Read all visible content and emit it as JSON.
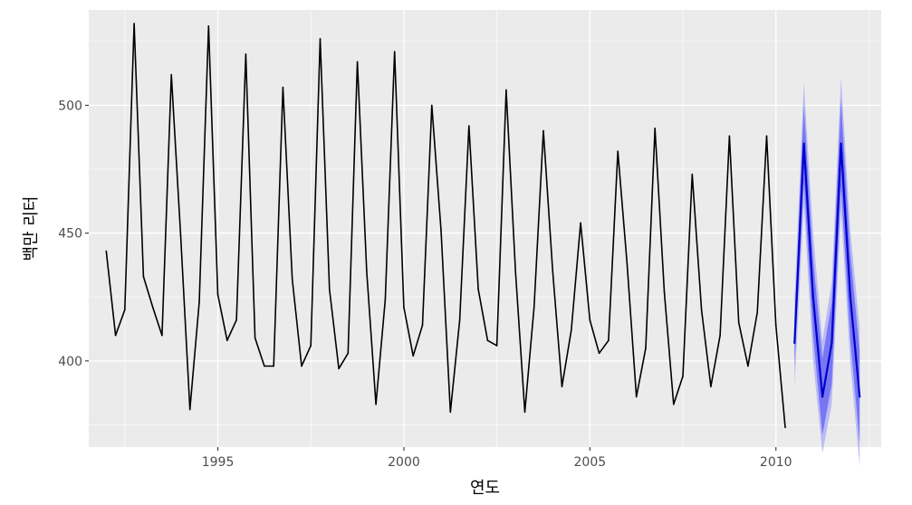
{
  "chart_data": {
    "type": "line",
    "title": "",
    "xlabel": "연도",
    "ylabel": "백만 리터",
    "xlim": [
      1991.53,
      2012.83
    ],
    "ylim": [
      366.3,
      537.3
    ],
    "x_ticks": [
      1995,
      2000,
      2005,
      2010
    ],
    "x_tick_labels": [
      "1995",
      "2000",
      "2005",
      "2010"
    ],
    "y_ticks": [
      400,
      450,
      500
    ],
    "y_tick_labels": [
      "400",
      "450",
      "500"
    ],
    "grid": true,
    "legend": "none",
    "colors": {
      "panel": "#ebebeb",
      "grid": "#ffffff",
      "history": "#000000",
      "forecast": "#0000cc",
      "interval_80": "#6b6bf2",
      "interval_95": "#b3b3f7"
    },
    "series": [
      {
        "values": [
          {
            "x": 1992.0,
            "y": 443
          },
          {
            "x": 1992.25,
            "y": 410
          },
          {
            "x": 1992.5,
            "y": 420
          },
          {
            "x": 1992.75,
            "y": 532
          },
          {
            "x": 1993.0,
            "y": 433
          },
          {
            "x": 1993.25,
            "y": 421
          },
          {
            "x": 1993.5,
            "y": 410
          },
          {
            "x": 1993.75,
            "y": 512
          },
          {
            "x": 1994.0,
            "y": 449
          },
          {
            "x": 1994.25,
            "y": 381
          },
          {
            "x": 1994.5,
            "y": 423
          },
          {
            "x": 1994.75,
            "y": 531
          },
          {
            "x": 1995.0,
            "y": 426
          },
          {
            "x": 1995.25,
            "y": 408
          },
          {
            "x": 1995.5,
            "y": 416
          },
          {
            "x": 1995.75,
            "y": 520
          },
          {
            "x": 1996.0,
            "y": 409
          },
          {
            "x": 1996.25,
            "y": 398
          },
          {
            "x": 1996.5,
            "y": 398
          },
          {
            "x": 1996.75,
            "y": 507
          },
          {
            "x": 1997.0,
            "y": 432
          },
          {
            "x": 1997.25,
            "y": 398
          },
          {
            "x": 1997.5,
            "y": 406
          },
          {
            "x": 1997.75,
            "y": 526
          },
          {
            "x": 1998.0,
            "y": 428
          },
          {
            "x": 1998.25,
            "y": 397
          },
          {
            "x": 1998.5,
            "y": 403
          },
          {
            "x": 1998.75,
            "y": 517
          },
          {
            "x": 1999.0,
            "y": 435
          },
          {
            "x": 1999.25,
            "y": 383
          },
          {
            "x": 1999.5,
            "y": 424
          },
          {
            "x": 1999.75,
            "y": 521
          },
          {
            "x": 2000.0,
            "y": 421
          },
          {
            "x": 2000.25,
            "y": 402
          },
          {
            "x": 2000.5,
            "y": 414
          },
          {
            "x": 2000.75,
            "y": 500
          },
          {
            "x": 2001.0,
            "y": 451
          },
          {
            "x": 2001.25,
            "y": 380
          },
          {
            "x": 2001.5,
            "y": 416
          },
          {
            "x": 2001.75,
            "y": 492
          },
          {
            "x": 2002.0,
            "y": 428
          },
          {
            "x": 2002.25,
            "y": 408
          },
          {
            "x": 2002.5,
            "y": 406
          },
          {
            "x": 2002.75,
            "y": 506
          },
          {
            "x": 2003.0,
            "y": 435
          },
          {
            "x": 2003.25,
            "y": 380
          },
          {
            "x": 2003.5,
            "y": 421
          },
          {
            "x": 2003.75,
            "y": 490
          },
          {
            "x": 2004.0,
            "y": 435
          },
          {
            "x": 2004.25,
            "y": 390
          },
          {
            "x": 2004.5,
            "y": 412
          },
          {
            "x": 2004.75,
            "y": 454
          },
          {
            "x": 2005.0,
            "y": 416
          },
          {
            "x": 2005.25,
            "y": 403
          },
          {
            "x": 2005.5,
            "y": 408
          },
          {
            "x": 2005.75,
            "y": 482
          },
          {
            "x": 2006.0,
            "y": 438
          },
          {
            "x": 2006.25,
            "y": 386
          },
          {
            "x": 2006.5,
            "y": 405
          },
          {
            "x": 2006.75,
            "y": 491
          },
          {
            "x": 2007.0,
            "y": 427
          },
          {
            "x": 2007.25,
            "y": 383
          },
          {
            "x": 2007.5,
            "y": 394
          },
          {
            "x": 2007.75,
            "y": 473
          },
          {
            "x": 2008.0,
            "y": 420
          },
          {
            "x": 2008.25,
            "y": 390
          },
          {
            "x": 2008.5,
            "y": 410
          },
          {
            "x": 2008.75,
            "y": 488
          },
          {
            "x": 2009.0,
            "y": 415
          },
          {
            "x": 2009.25,
            "y": 398
          },
          {
            "x": 2009.5,
            "y": 419
          },
          {
            "x": 2009.75,
            "y": 488
          },
          {
            "x": 2010.0,
            "y": 414
          },
          {
            "x": 2010.25,
            "y": 374
          }
        ]
      }
    ],
    "forecast": {
      "values": [
        {
          "x": 2010.5,
          "y": 407
        },
        {
          "x": 2010.75,
          "y": 485
        },
        {
          "x": 2011.0,
          "y": 425
        },
        {
          "x": 2011.25,
          "y": 386
        },
        {
          "x": 2011.5,
          "y": 407
        },
        {
          "x": 2011.75,
          "y": 485
        },
        {
          "x": 2012.0,
          "y": 425
        },
        {
          "x": 2012.25,
          "y": 386
        }
      ],
      "intervals": [
        {
          "level": 80,
          "lower": [
            398,
            470,
            410,
            371,
            391,
            468,
            408,
            368
          ],
          "upper": [
            416,
            500,
            440,
            401,
            423,
            502,
            442,
            404
          ]
        },
        {
          "level": 95,
          "lower": [
            390,
            461,
            400,
            364,
            383,
            459,
            399,
            359
          ],
          "upper": [
            424,
            509,
            450,
            408,
            431,
            511,
            451,
            413
          ]
        }
      ]
    }
  }
}
